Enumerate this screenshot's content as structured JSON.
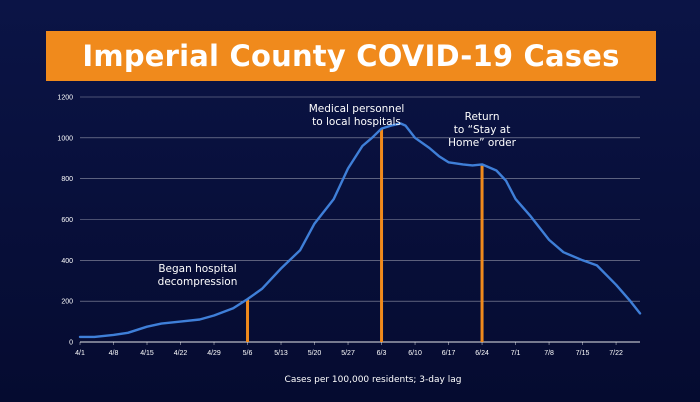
{
  "slide": {
    "title": "Imperial County COVID-19 Cases"
  },
  "colors": {
    "background": "#060d35",
    "banner": "#f08a1c",
    "line": "#3f7fd8",
    "event_marker": "#f08a1c",
    "gridline": "#ffffff"
  },
  "chart_data": {
    "type": "line",
    "title": "Imperial County COVID-19 Cases",
    "xlabel": "Cases per 100,000 residents; 3-day lag",
    "ylabel": "",
    "ylim": [
      0,
      1200
    ],
    "y_ticks": [
      "0",
      "200",
      "400",
      "600",
      "800",
      "1000",
      "1200"
    ],
    "x_ticks": [
      "4/1",
      "4/8",
      "4/15",
      "4/22",
      "4/29",
      "5/6",
      "5/13",
      "5/20",
      "5/27",
      "6/3",
      "6/10",
      "6/17",
      "6/24",
      "7/1",
      "7/8",
      "7/15",
      "7/22"
    ],
    "grid": "horizontal",
    "series": [
      {
        "x": [
          "4/1",
          "4/4",
          "4/8",
          "4/11",
          "4/15",
          "4/18",
          "4/22",
          "4/26",
          "4/29",
          "5/3",
          "5/6",
          "5/9",
          "5/13",
          "5/17",
          "5/20",
          "5/24",
          "5/27",
          "5/30",
          "6/1",
          "6/3",
          "6/5",
          "6/7",
          "6/8",
          "6/10",
          "6/13",
          "6/15",
          "6/17",
          "6/20",
          "6/22",
          "6/24",
          "6/27",
          "6/29",
          "7/1",
          "7/4",
          "7/8",
          "7/11",
          "7/15",
          "7/18",
          "7/22",
          "7/25",
          "7/27"
        ],
        "values": [
          25,
          25,
          35,
          45,
          75,
          90,
          100,
          110,
          130,
          165,
          210,
          260,
          360,
          450,
          580,
          700,
          850,
          960,
          1000,
          1045,
          1060,
          1070,
          1060,
          1000,
          950,
          910,
          880,
          870,
          865,
          870,
          840,
          790,
          700,
          620,
          500,
          440,
          400,
          375,
          280,
          200,
          140
        ]
      }
    ],
    "annotations": [
      {
        "x": "5/6",
        "lines": [
          "Began hospital",
          "decompression"
        ]
      },
      {
        "x": "6/3",
        "lines": [
          "Medical personnel",
          "to local hospitals"
        ]
      },
      {
        "x": "6/24",
        "lines": [
          "Return",
          "to “Stay at",
          "Home” order"
        ]
      }
    ]
  }
}
